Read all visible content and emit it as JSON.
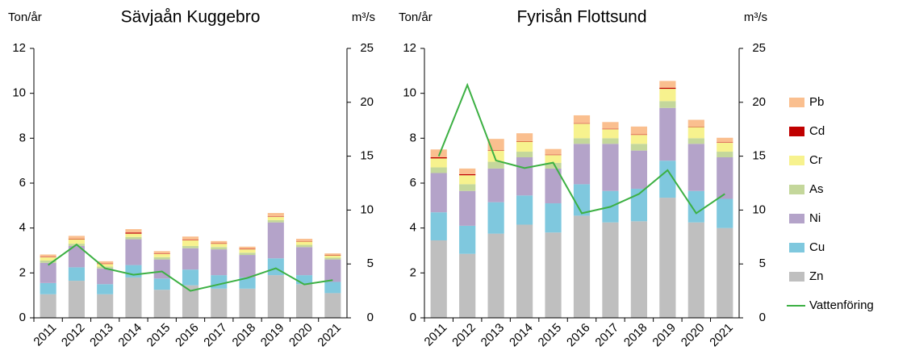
{
  "chart_data": [
    {
      "type": "bar",
      "stacked": true,
      "title": "Sävjaån Kuggebro",
      "y_label": "Ton/år",
      "y2_label": "m³/s",
      "categories": [
        "2011",
        "2012",
        "2013",
        "2014",
        "2015",
        "2016",
        "2017",
        "2018",
        "2019",
        "2020",
        "2021"
      ],
      "ylim": [
        0,
        12
      ],
      "yticks": [
        0,
        2,
        4,
        6,
        8,
        10,
        12
      ],
      "y2lim": [
        0,
        25
      ],
      "y2ticks": [
        0,
        5,
        10,
        15,
        20,
        25
      ],
      "series": [
        {
          "name": "Zn",
          "color": "#bfbfbf",
          "values": [
            1.05,
            1.65,
            1.05,
            1.8,
            1.25,
            1.45,
            1.3,
            1.3,
            1.9,
            1.5,
            1.1
          ]
        },
        {
          "name": "Cu",
          "color": "#7fc8de",
          "values": [
            0.5,
            0.6,
            0.45,
            0.55,
            0.5,
            0.7,
            0.6,
            0.5,
            0.75,
            0.4,
            0.5
          ]
        },
        {
          "name": "Ni",
          "color": "#b4a3c9",
          "values": [
            0.9,
            0.95,
            0.7,
            1.15,
            0.85,
            0.95,
            1.15,
            1.0,
            1.6,
            1.25,
            1.0
          ]
        },
        {
          "name": "As",
          "color": "#c4d79b",
          "values": [
            0.1,
            0.1,
            0.08,
            0.1,
            0.1,
            0.1,
            0.1,
            0.1,
            0.1,
            0.1,
            0.08
          ]
        },
        {
          "name": "Cr",
          "color": "#f7f28e",
          "values": [
            0.15,
            0.2,
            0.12,
            0.15,
            0.15,
            0.25,
            0.15,
            0.15,
            0.15,
            0.15,
            0.1
          ]
        },
        {
          "name": "Cd",
          "color": "#c00000",
          "values": [
            0.02,
            0.02,
            0.02,
            0.05,
            0.02,
            0.02,
            0.02,
            0.02,
            0.02,
            0.02,
            0.02
          ]
        },
        {
          "name": "Pb",
          "color": "#fabf8f",
          "values": [
            0.1,
            0.13,
            0.1,
            0.15,
            0.1,
            0.15,
            0.1,
            0.1,
            0.15,
            0.1,
            0.07
          ]
        },
        {
          "name": "Vattenföring",
          "color": "#3cb043",
          "type": "line",
          "axis": "y2",
          "values": [
            4.9,
            6.8,
            4.6,
            4.0,
            4.3,
            2.5,
            3.1,
            3.7,
            4.6,
            3.1,
            3.5
          ]
        }
      ]
    },
    {
      "type": "bar",
      "stacked": true,
      "title": "Fyrisån Flottsund",
      "y_label": "Ton/år",
      "y2_label": "m³/s",
      "categories": [
        "2011",
        "2012",
        "2013",
        "2014",
        "2015",
        "2016",
        "2017",
        "2018",
        "2019",
        "2020",
        "2021"
      ],
      "ylim": [
        0,
        12
      ],
      "yticks": [
        0,
        2,
        4,
        6,
        8,
        10,
        12
      ],
      "y2lim": [
        0,
        25
      ],
      "y2ticks": [
        0,
        5,
        10,
        15,
        20,
        25
      ],
      "series": [
        {
          "name": "Zn",
          "color": "#bfbfbf",
          "values": [
            3.45,
            2.85,
            3.75,
            4.15,
            3.8,
            4.55,
            4.25,
            4.3,
            5.35,
            4.25,
            4.0
          ]
        },
        {
          "name": "Cu",
          "color": "#7fc8de",
          "values": [
            1.25,
            1.25,
            1.4,
            1.3,
            1.3,
            1.4,
            1.4,
            1.45,
            1.65,
            1.4,
            1.3
          ]
        },
        {
          "name": "Ni",
          "color": "#b4a3c9",
          "values": [
            1.75,
            1.55,
            1.5,
            1.7,
            1.55,
            1.8,
            2.1,
            1.7,
            2.35,
            2.1,
            1.85
          ]
        },
        {
          "name": "As",
          "color": "#c4d79b",
          "values": [
            0.25,
            0.3,
            0.3,
            0.25,
            0.25,
            0.25,
            0.25,
            0.3,
            0.3,
            0.25,
            0.25
          ]
        },
        {
          "name": "Cr",
          "color": "#f7f28e",
          "values": [
            0.4,
            0.4,
            0.5,
            0.45,
            0.35,
            0.65,
            0.4,
            0.4,
            0.55,
            0.5,
            0.4
          ]
        },
        {
          "name": "Cd",
          "color": "#c00000",
          "values": [
            0.05,
            0.05,
            0.02,
            0.02,
            0.02,
            0.02,
            0.02,
            0.02,
            0.05,
            0.02,
            0.02
          ]
        },
        {
          "name": "Pb",
          "color": "#fabf8f",
          "values": [
            0.35,
            0.25,
            0.5,
            0.35,
            0.25,
            0.35,
            0.3,
            0.35,
            0.3,
            0.3,
            0.2
          ]
        },
        {
          "name": "Vattenföring",
          "color": "#3cb043",
          "type": "line",
          "axis": "y2",
          "values": [
            15.0,
            21.6,
            14.6,
            13.9,
            14.4,
            9.7,
            10.3,
            11.5,
            13.7,
            9.7,
            11.5
          ]
        }
      ]
    }
  ]
}
